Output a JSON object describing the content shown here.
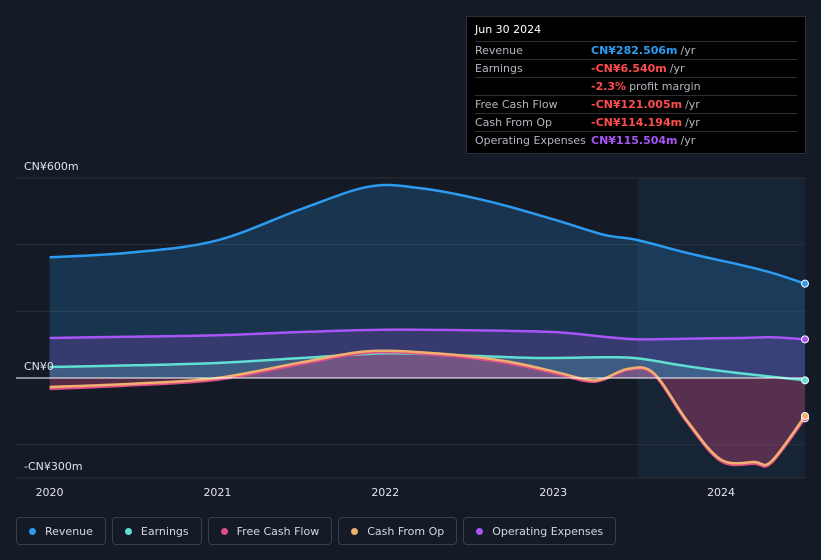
{
  "tooltip": {
    "date": "Jun 30 2024",
    "rows": [
      {
        "label": "Revenue",
        "value": "CN¥282.506m",
        "unit": "/yr",
        "color": "#2d9bf0"
      },
      {
        "label": "Earnings",
        "value": "-CN¥6.540m",
        "unit": "/yr",
        "color": "#ff4d4d"
      },
      {
        "label": "",
        "value": "-2.3%",
        "unit": "profit margin",
        "color": "#ff4d4d"
      },
      {
        "label": "Free Cash Flow",
        "value": "-CN¥121.005m",
        "unit": "/yr",
        "color": "#ff4d4d"
      },
      {
        "label": "Cash From Op",
        "value": "-CN¥114.194m",
        "unit": "/yr",
        "color": "#ff4d4d"
      },
      {
        "label": "Operating Expenses",
        "value": "CN¥115.504m",
        "unit": "/yr",
        "color": "#a855f7"
      }
    ]
  },
  "legend": [
    {
      "label": "Revenue",
      "color": "#2d9bf0"
    },
    {
      "label": "Earnings",
      "color": "#5fe0d2"
    },
    {
      "label": "Free Cash Flow",
      "color": "#e04c86"
    },
    {
      "label": "Cash From Op",
      "color": "#f0b070"
    },
    {
      "label": "Operating Expenses",
      "color": "#a855f7"
    }
  ],
  "chart_data": {
    "type": "line",
    "y_top_label": "CN¥600m",
    "y_zero_label": "CN¥0",
    "y_bottom_label": "-CN¥300m",
    "x_tick_labels": [
      "2020",
      "2021",
      "2022",
      "2023",
      "2024"
    ],
    "x_ticks": [
      2020,
      2021,
      2022,
      2023,
      2024
    ],
    "xlim": [
      2019.8,
      2024.5
    ],
    "ylim": [
      -300,
      600
    ],
    "forecast_start": 2023.5,
    "series": [
      {
        "name": "Revenue",
        "color": "#2d9bf0",
        "fill": true,
        "points": [
          [
            2020.0,
            362
          ],
          [
            2020.5,
            377
          ],
          [
            2021.0,
            413
          ],
          [
            2021.5,
            507
          ],
          [
            2021.9,
            574
          ],
          [
            2022.2,
            570
          ],
          [
            2022.6,
            532
          ],
          [
            2023.0,
            476
          ],
          [
            2023.3,
            430
          ],
          [
            2023.5,
            414
          ],
          [
            2023.8,
            375
          ],
          [
            2024.1,
            341
          ],
          [
            2024.3,
            316
          ],
          [
            2024.5,
            283
          ]
        ]
      },
      {
        "name": "Operating Expenses",
        "color": "#a855f7",
        "fill": true,
        "points": [
          [
            2020.0,
            120
          ],
          [
            2020.5,
            124
          ],
          [
            2021.0,
            128
          ],
          [
            2021.5,
            138
          ],
          [
            2022.0,
            145
          ],
          [
            2022.5,
            143
          ],
          [
            2023.0,
            138
          ],
          [
            2023.3,
            124
          ],
          [
            2023.5,
            116
          ],
          [
            2023.8,
            118
          ],
          [
            2024.1,
            120
          ],
          [
            2024.3,
            122
          ],
          [
            2024.5,
            116
          ]
        ]
      },
      {
        "name": "Earnings",
        "color": "#5fe0d2",
        "fill": true,
        "points": [
          [
            2020.0,
            33
          ],
          [
            2020.5,
            38
          ],
          [
            2021.0,
            45
          ],
          [
            2021.5,
            60
          ],
          [
            2022.0,
            74
          ],
          [
            2022.5,
            67
          ],
          [
            2022.9,
            60
          ],
          [
            2023.3,
            62
          ],
          [
            2023.5,
            59
          ],
          [
            2023.8,
            35
          ],
          [
            2024.1,
            15
          ],
          [
            2024.5,
            -7
          ]
        ]
      },
      {
        "name": "Free Cash Flow",
        "color": "#e04c86",
        "fill": true,
        "points": [
          [
            2020.0,
            -33
          ],
          [
            2020.5,
            -22
          ],
          [
            2021.0,
            -5
          ],
          [
            2021.5,
            42
          ],
          [
            2021.9,
            76
          ],
          [
            2022.3,
            70
          ],
          [
            2022.7,
            47
          ],
          [
            2023.0,
            15
          ],
          [
            2023.2,
            -10
          ],
          [
            2023.3,
            -5
          ],
          [
            2023.45,
            25
          ],
          [
            2023.6,
            10
          ],
          [
            2023.8,
            -135
          ],
          [
            2024.0,
            -250
          ],
          [
            2024.2,
            -257
          ],
          [
            2024.3,
            -255
          ],
          [
            2024.5,
            -121
          ]
        ]
      },
      {
        "name": "Cash From Op",
        "color": "#f0b070",
        "fill": false,
        "points": [
          [
            2020.0,
            -27
          ],
          [
            2020.5,
            -17
          ],
          [
            2021.0,
            0
          ],
          [
            2021.5,
            47
          ],
          [
            2021.9,
            80
          ],
          [
            2022.3,
            74
          ],
          [
            2022.7,
            52
          ],
          [
            2023.0,
            20
          ],
          [
            2023.2,
            -5
          ],
          [
            2023.3,
            -2
          ],
          [
            2023.45,
            28
          ],
          [
            2023.6,
            14
          ],
          [
            2023.8,
            -130
          ],
          [
            2024.0,
            -245
          ],
          [
            2024.2,
            -252
          ],
          [
            2024.3,
            -250
          ],
          [
            2024.5,
            -114
          ]
        ]
      }
    ]
  }
}
